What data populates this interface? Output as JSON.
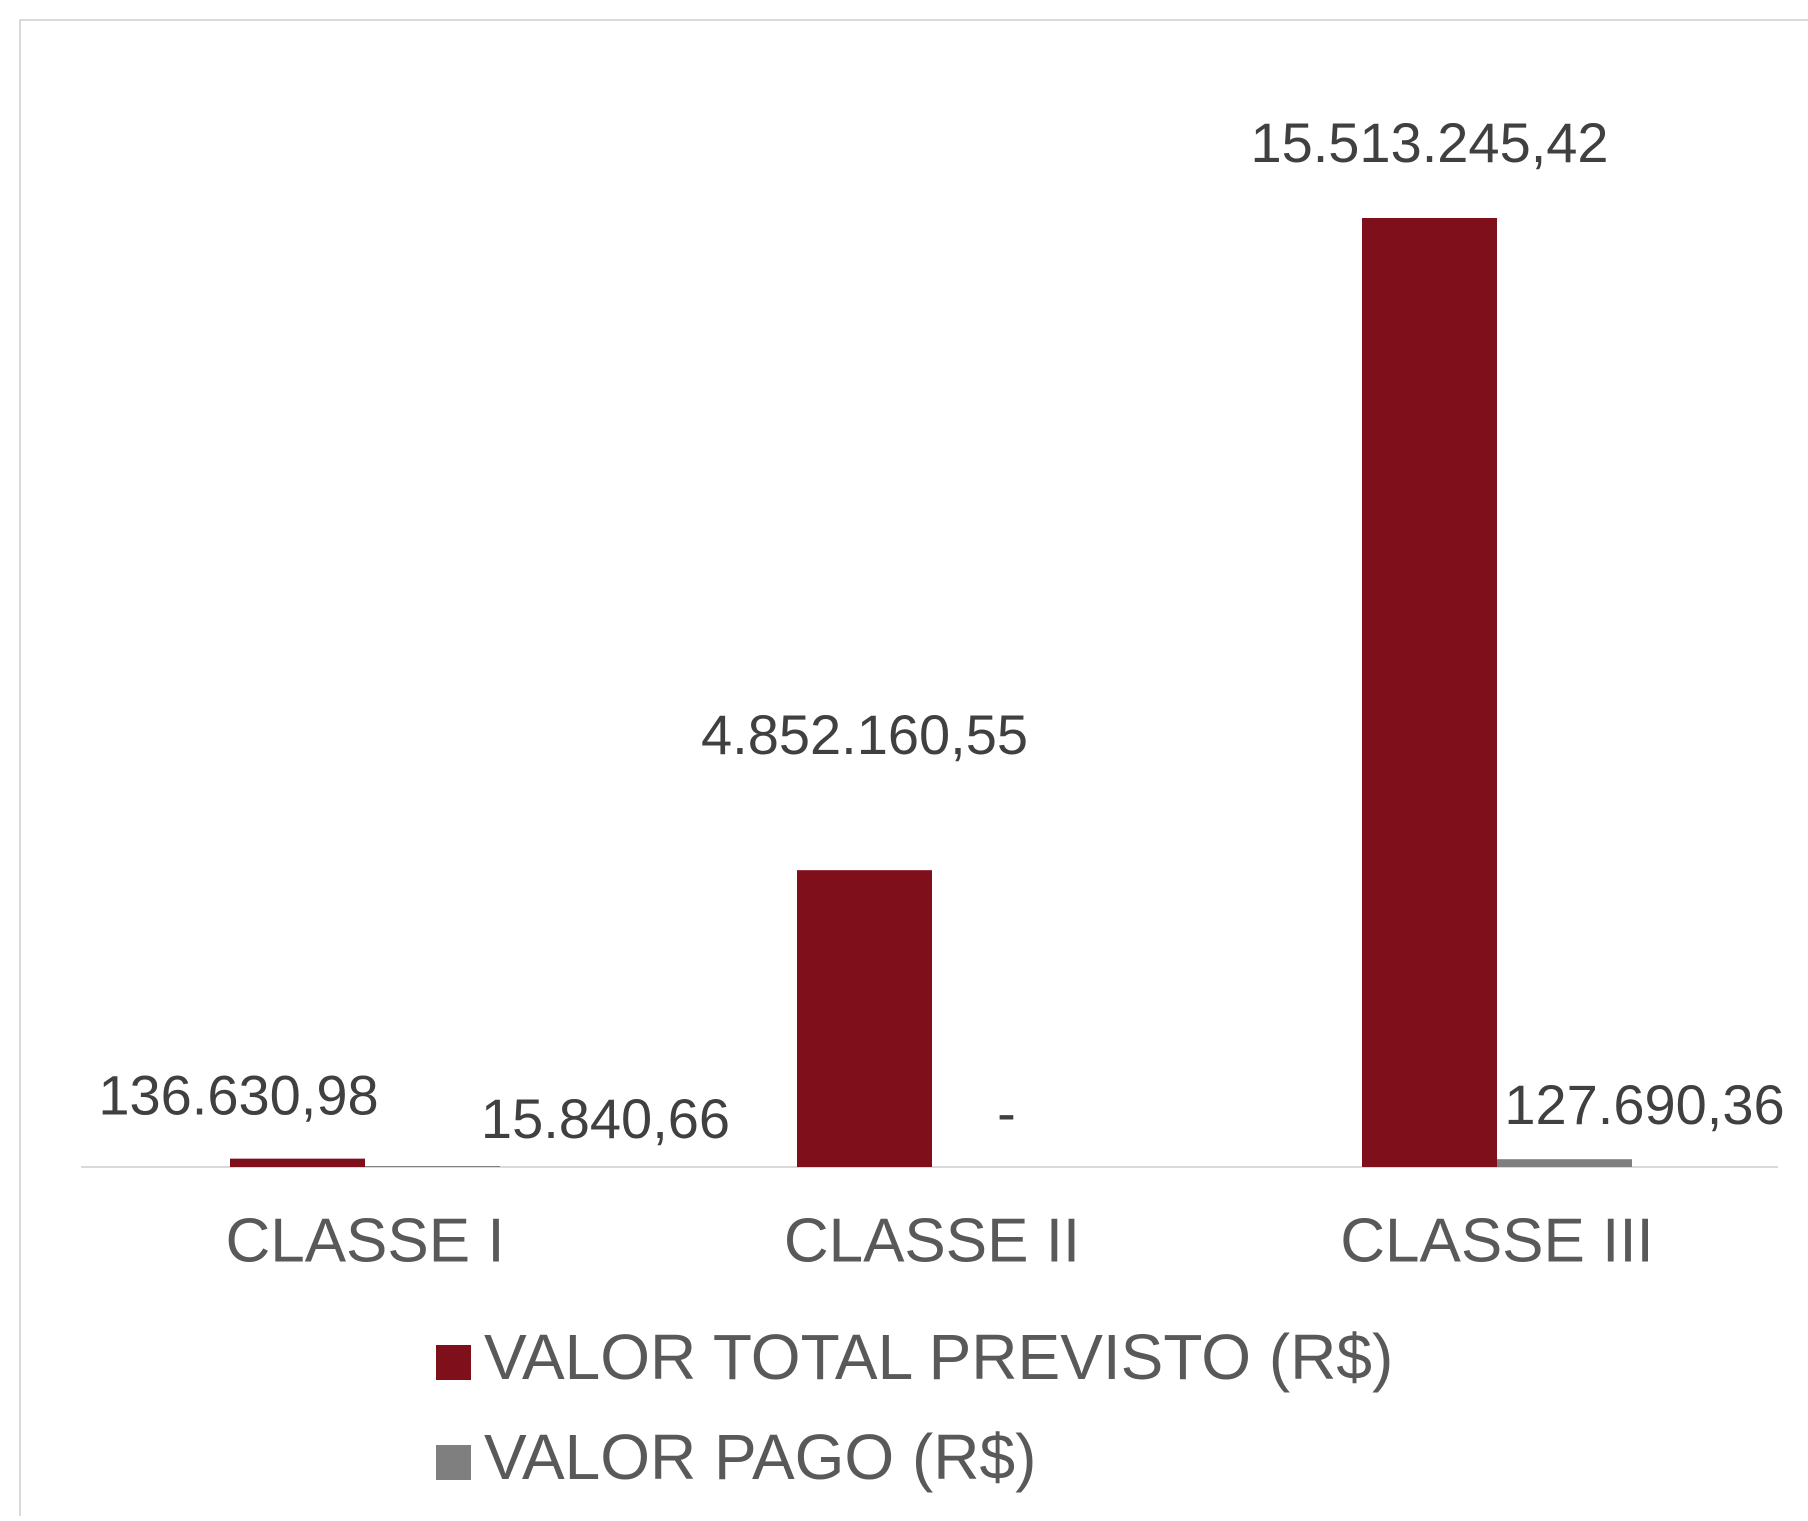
{
  "chart_data": {
    "type": "bar",
    "categories": [
      "CLASSE I",
      "CLASSE II",
      "CLASSE III"
    ],
    "series": [
      {
        "name": "VALOR TOTAL PREVISTO (R$)",
        "color": "#7f0f1b",
        "values": [
          136630.98,
          4852160.55,
          15513245.42
        ],
        "value_labels": [
          "136.630,98",
          "4.852.160,55",
          "15.513.245,42"
        ]
      },
      {
        "name": "VALOR PAGO (R$)",
        "color": "#7f7f7f",
        "values": [
          15840.66,
          0,
          127690.36
        ],
        "value_labels": [
          "15.840,66",
          "-",
          "127.690,36"
        ]
      }
    ],
    "legend": "bottom"
  }
}
